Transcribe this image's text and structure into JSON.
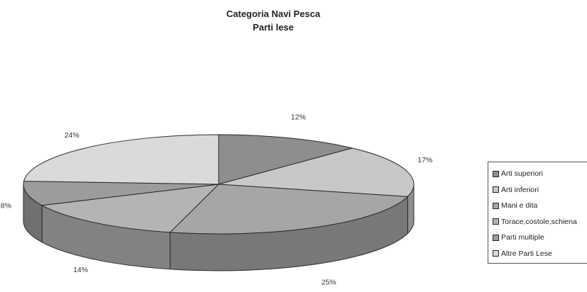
{
  "chart_data": {
    "type": "pie",
    "style": "3d",
    "title": "Categoria Navi Pesca",
    "subtitle": "Parti lese",
    "legend_position": "right",
    "categories": [
      "Arti superiori",
      "Arti inferiori",
      "Mani e dita",
      "Torace,costole,schiena",
      "Parti multiple",
      "Altre Parti Lese"
    ],
    "values": [
      12,
      17,
      25,
      14,
      8,
      24
    ],
    "labels": [
      "12%",
      "17%",
      "25%",
      "14%",
      "8%",
      "24%"
    ],
    "colors": [
      "#8e8e8e",
      "#c8c8c8",
      "#a6a6a6",
      "#b4b4b4",
      "#9c9c9c",
      "#dadada"
    ]
  }
}
